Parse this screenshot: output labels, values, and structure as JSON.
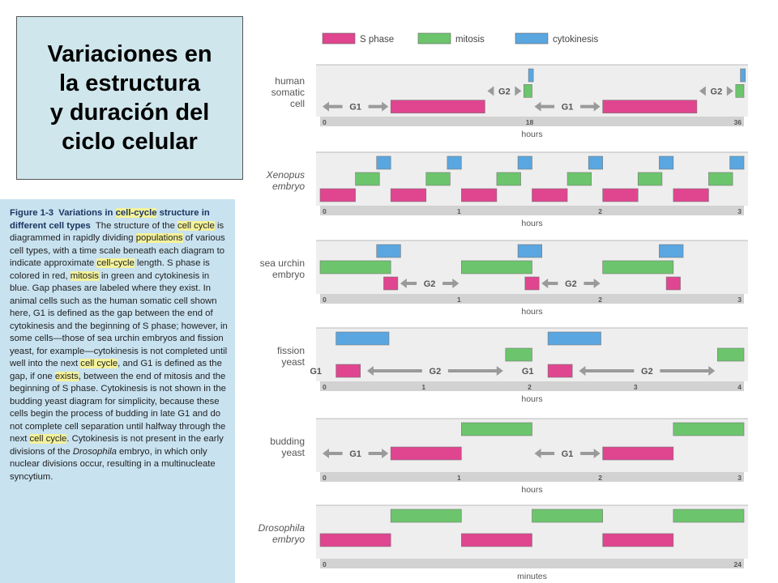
{
  "title": {
    "lines": [
      "Variaciones en",
      "la estructura",
      "y duración del",
      "ciclo celular"
    ]
  },
  "caption": {
    "figure_label": "Figure 1-3",
    "heading_a": "Variations in ",
    "heading_hl": "cell-cycle",
    "heading_b": " structure in different cell types",
    "text_1": "The structure of the ",
    "hl_1": "cell cycle",
    "text_2": " is diagrammed in rapidly dividing ",
    "hl_2": "populations",
    "text_3": " of various cell types, with a time scale beneath each diagram to indicate approximate ",
    "hl_3": "cell-cycle",
    "text_4": " length. S phase is colored in red, ",
    "hl_4": "mitosis",
    "text_5": " in green and cytokinesis in blue. Gap phases are labeled where they exist. In animal cells such as the human somatic cell shown here, G1 is defined as the gap between the end of cytokinesis and the beginning of S phase; however, in some cells—those of sea urchin embryos and fission yeast, for example—cytokinesis is not completed until well into the next ",
    "hl_5": "cell cycle",
    "text_6": ", and G1 is defined as the gap, if one ",
    "hl_6": "exists",
    "text_7": ", between the end of mitosis and the beginning of S phase. Cytokinesis is not shown in the budding yeast diagram for simplicity, because these cells begin the process of budding in late G1 and do not complete cell separation until halfway through the next ",
    "hl_7": "cell cycle",
    "text_8": ". Cytokinesis is not present in the early divisions of the ",
    "it_1": "Drosophila",
    "text_9": " embryo, in which only nuclear divisions occur, resulting in a multinucleate syncytium."
  },
  "legend": [
    {
      "label": "S phase",
      "color": "#e0458f"
    },
    {
      "label": "mitosis",
      "color": "#6cc56c"
    },
    {
      "label": "cytokinesis",
      "color": "#5aa6e0"
    }
  ],
  "colors": {
    "s": "#e0458f",
    "m": "#6cc56c",
    "c": "#5aa6e0",
    "scale": "#d2d2d2",
    "arrow": "#9a9a9a",
    "band": "#eeeeee"
  },
  "diagrams": [
    {
      "label": [
        "human",
        "somatic",
        "cell"
      ],
      "italic": false,
      "unit": "hours",
      "ticks": [
        {
          "v": 0,
          "t": "0"
        },
        {
          "v": 18,
          "t": "18"
        },
        {
          "v": 36,
          "t": "36"
        }
      ],
      "range": [
        0,
        36
      ],
      "rows": 3,
      "segments": [
        {
          "k": "c",
          "row": 0,
          "s": 17.7,
          "e": 18
        },
        {
          "k": "c",
          "row": 0,
          "s": 35.7,
          "e": 36
        },
        {
          "k": "m",
          "row": 1,
          "s": 17.3,
          "e": 18
        },
        {
          "k": "m",
          "row": 1,
          "s": 35.3,
          "e": 36
        },
        {
          "k": "s",
          "row": 2,
          "s": 6,
          "e": 14
        },
        {
          "k": "s",
          "row": 2,
          "s": 24,
          "e": 32
        }
      ],
      "arrows": [
        {
          "row": 2,
          "s": 0,
          "e": 6,
          "label": "G1"
        },
        {
          "row": 1,
          "s": 14,
          "e": 17.3,
          "label": "G2"
        },
        {
          "row": 2,
          "s": 18,
          "e": 24,
          "label": "G1"
        },
        {
          "row": 1,
          "s": 32,
          "e": 35.3,
          "label": "G2"
        }
      ]
    },
    {
      "label": [
        "Xenopus",
        "embryo"
      ],
      "italic": true,
      "unit": "hours",
      "ticks": [
        {
          "v": 0,
          "t": "0"
        },
        {
          "v": 1,
          "t": "1"
        },
        {
          "v": 2,
          "t": "2"
        },
        {
          "v": 3,
          "t": "3"
        }
      ],
      "range": [
        0,
        3
      ],
      "rows": 3,
      "segments": [
        {
          "k": "s",
          "row": 2,
          "s": 0,
          "e": 0.25
        },
        {
          "k": "m",
          "row": 1,
          "s": 0.25,
          "e": 0.42
        },
        {
          "k": "c",
          "row": 0,
          "s": 0.4,
          "e": 0.5
        },
        {
          "k": "s",
          "row": 2,
          "s": 0.5,
          "e": 0.75
        },
        {
          "k": "m",
          "row": 1,
          "s": 0.75,
          "e": 0.92
        },
        {
          "k": "c",
          "row": 0,
          "s": 0.9,
          "e": 1.0
        },
        {
          "k": "s",
          "row": 2,
          "s": 1.0,
          "e": 1.25
        },
        {
          "k": "m",
          "row": 1,
          "s": 1.25,
          "e": 1.42
        },
        {
          "k": "c",
          "row": 0,
          "s": 1.4,
          "e": 1.5
        },
        {
          "k": "s",
          "row": 2,
          "s": 1.5,
          "e": 1.75
        },
        {
          "k": "m",
          "row": 1,
          "s": 1.75,
          "e": 1.92
        },
        {
          "k": "c",
          "row": 0,
          "s": 1.9,
          "e": 2.0
        },
        {
          "k": "s",
          "row": 2,
          "s": 2.0,
          "e": 2.25
        },
        {
          "k": "m",
          "row": 1,
          "s": 2.25,
          "e": 2.42
        },
        {
          "k": "c",
          "row": 0,
          "s": 2.4,
          "e": 2.5
        },
        {
          "k": "s",
          "row": 2,
          "s": 2.5,
          "e": 2.75
        },
        {
          "k": "m",
          "row": 1,
          "s": 2.75,
          "e": 2.92
        },
        {
          "k": "c",
          "row": 0,
          "s": 2.9,
          "e": 3.0
        }
      ],
      "arrows": []
    },
    {
      "label": [
        "sea urchin",
        "embryo"
      ],
      "italic": false,
      "unit": "hours",
      "ticks": [
        {
          "v": 0,
          "t": "0"
        },
        {
          "v": 1,
          "t": "1"
        },
        {
          "v": 2,
          "t": "2"
        },
        {
          "v": 3,
          "t": "3"
        }
      ],
      "range": [
        0,
        3
      ],
      "rows": 3,
      "segments": [
        {
          "k": "m",
          "row": 1,
          "s": 0,
          "e": 0.5
        },
        {
          "k": "c",
          "row": 0,
          "s": 0.4,
          "e": 0.57
        },
        {
          "k": "s",
          "row": 2,
          "s": 0.45,
          "e": 0.55
        },
        {
          "k": "m",
          "row": 1,
          "s": 1.0,
          "e": 1.5
        },
        {
          "k": "c",
          "row": 0,
          "s": 1.4,
          "e": 1.57
        },
        {
          "k": "s",
          "row": 2,
          "s": 1.45,
          "e": 1.55
        },
        {
          "k": "m",
          "row": 1,
          "s": 2.0,
          "e": 2.5
        },
        {
          "k": "c",
          "row": 0,
          "s": 2.4,
          "e": 2.57
        },
        {
          "k": "s",
          "row": 2,
          "s": 2.45,
          "e": 2.55
        }
      ],
      "arrows": [
        {
          "row": 2,
          "s": 0.55,
          "e": 1.0,
          "label": "G2"
        },
        {
          "row": 2,
          "s": 1.55,
          "e": 2.0,
          "label": "G2"
        }
      ]
    },
    {
      "label": [
        "fission",
        "yeast"
      ],
      "italic": false,
      "unit": "hours",
      "ticks": [
        {
          "v": 0,
          "t": "0"
        },
        {
          "v": 1,
          "t": "1"
        },
        {
          "v": 2,
          "t": "2"
        },
        {
          "v": 3,
          "t": "3"
        },
        {
          "v": 4,
          "t": "4"
        }
      ],
      "range": [
        0,
        4
      ],
      "rows": 3,
      "segments": [
        {
          "k": "c",
          "row": 0,
          "s": 0.15,
          "e": 0.65
        },
        {
          "k": "s",
          "row": 2,
          "s": 0.15,
          "e": 0.38
        },
        {
          "k": "m",
          "row": 1,
          "s": 1.75,
          "e": 2.0
        },
        {
          "k": "c",
          "row": 0,
          "s": 2.15,
          "e": 2.65
        },
        {
          "k": "s",
          "row": 2,
          "s": 2.15,
          "e": 2.38
        },
        {
          "k": "m",
          "row": 1,
          "s": 3.75,
          "e": 4.0
        }
      ],
      "arrows": [
        {
          "row": 2,
          "s": 0,
          "e": 0.15,
          "label": "G1",
          "lead": true
        },
        {
          "row": 2,
          "s": 0.42,
          "e": 1.75,
          "label": "G2"
        },
        {
          "row": 2,
          "s": 2.0,
          "e": 2.15,
          "label": "G1",
          "lead": true
        },
        {
          "row": 2,
          "s": 2.42,
          "e": 3.75,
          "label": "G2"
        }
      ]
    },
    {
      "label": [
        "budding",
        "yeast"
      ],
      "italic": false,
      "unit": "hours",
      "ticks": [
        {
          "v": 0,
          "t": "0"
        },
        {
          "v": 1,
          "t": "1"
        },
        {
          "v": 2,
          "t": "2"
        },
        {
          "v": 3,
          "t": "3"
        }
      ],
      "range": [
        0,
        3
      ],
      "rows": 2,
      "segments": [
        {
          "k": "s",
          "row": 1,
          "s": 0.5,
          "e": 1.0
        },
        {
          "k": "m",
          "row": 0,
          "s": 1.0,
          "e": 1.5
        },
        {
          "k": "s",
          "row": 1,
          "s": 2.0,
          "e": 2.5
        },
        {
          "k": "m",
          "row": 0,
          "s": 2.5,
          "e": 3.0
        }
      ],
      "arrows": [
        {
          "row": 1,
          "s": 0,
          "e": 0.5,
          "label": "G1"
        },
        {
          "row": 1,
          "s": 1.5,
          "e": 2.0,
          "label": "G1"
        }
      ]
    },
    {
      "label": [
        "Drosophila",
        "embryo"
      ],
      "italic": true,
      "unit": "minutes",
      "ticks": [
        {
          "v": 0,
          "t": "0"
        },
        {
          "v": 24,
          "t": "24"
        }
      ],
      "range": [
        0,
        24
      ],
      "rows": 2,
      "segments": [
        {
          "k": "s",
          "row": 1,
          "s": 0,
          "e": 4
        },
        {
          "k": "m",
          "row": 0,
          "s": 4,
          "e": 8
        },
        {
          "k": "s",
          "row": 1,
          "s": 8,
          "e": 12
        },
        {
          "k": "m",
          "row": 0,
          "s": 12,
          "e": 16
        },
        {
          "k": "s",
          "row": 1,
          "s": 16,
          "e": 20
        },
        {
          "k": "m",
          "row": 0,
          "s": 20,
          "e": 24
        }
      ],
      "arrows": []
    }
  ]
}
